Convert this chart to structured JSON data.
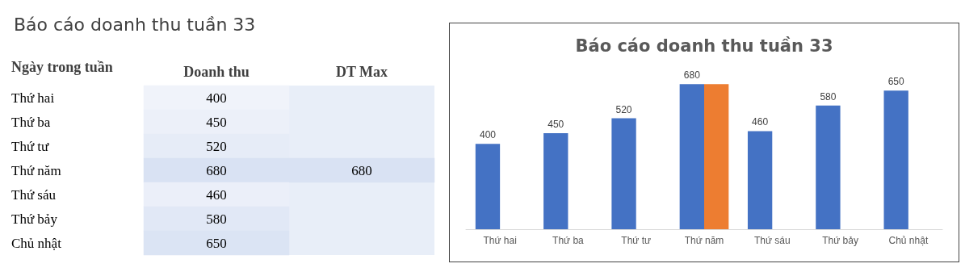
{
  "chart_data": [
    {
      "type": "heatmap",
      "title": "Báo cáo doanh thu tuần 33",
      "ylabel": "Ngày trong tuần",
      "categories": [
        "Doanh thu",
        "DT Max"
      ],
      "y_categories": [
        "Thứ hai",
        "Thứ ba",
        "Thứ tư",
        "Thứ năm",
        "Thứ sáu",
        "Thứ bảy",
        "Chủ nhật"
      ],
      "cells": [
        [
          400,
          null
        ],
        [
          450,
          null
        ],
        [
          520,
          null
        ],
        [
          680,
          680
        ],
        [
          460,
          null
        ],
        [
          580,
          null
        ],
        [
          650,
          null
        ]
      ],
      "cell_labels": [
        [
          "400",
          null
        ],
        [
          "450",
          null
        ],
        [
          "520",
          null
        ],
        [
          "680",
          "680"
        ],
        [
          "460",
          null
        ],
        [
          "580",
          null
        ],
        [
          "650",
          null
        ]
      ]
    },
    {
      "type": "bar",
      "title": "Báo cáo doanh thu tuần 33",
      "categories": [
        "Thứ hai",
        "Thứ ba",
        "Thứ tư",
        "Thứ năm",
        "Thứ sáu",
        "Thứ bảy",
        "Chủ nhật"
      ],
      "series": [
        {
          "color": "#4472c4",
          "values": [
            400,
            450,
            520,
            680,
            460,
            580,
            650
          ],
          "value_labels": [
            "400",
            "450",
            "520",
            "680",
            "460",
            "580",
            "650"
          ]
        },
        {
          "color": "#ed7d31",
          "values": [
            null,
            null,
            null,
            680,
            null,
            null,
            null
          ]
        }
      ],
      "grid": false
    }
  ]
}
